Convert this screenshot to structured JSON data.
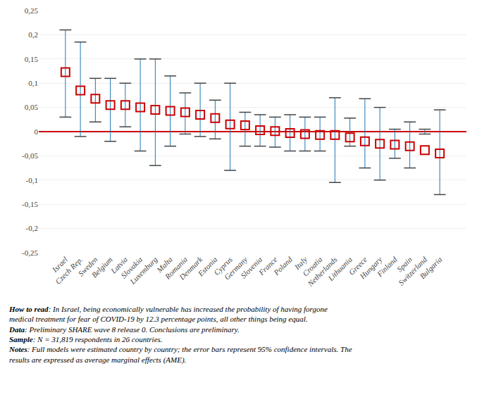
{
  "chart_data": {
    "type": "scatter",
    "categories": [
      "Israel",
      "Czech Rep.",
      "Sweden",
      "Belgium",
      "Latvia",
      "Slovakia",
      "Luxemburg",
      "Malta",
      "Romania",
      "Denmark",
      "Estonia",
      "Cyprus",
      "Germany",
      "Slovenia",
      "France",
      "Poland",
      "Italy",
      "Croatia",
      "Netherlands",
      "Lithuania",
      "Greece",
      "Hungary",
      "Finland",
      "Spain",
      "Switzerland",
      "Bulgaria"
    ],
    "values": [
      0.123,
      0.085,
      0.068,
      0.055,
      0.055,
      0.05,
      0.045,
      0.043,
      0.04,
      0.035,
      0.028,
      0.015,
      0.013,
      0.003,
      0.001,
      -0.003,
      -0.005,
      -0.007,
      -0.007,
      -0.012,
      -0.02,
      -0.025,
      -0.027,
      -0.03,
      -0.038,
      -0.045
    ],
    "ci_lower": [
      0.03,
      -0.01,
      0.02,
      -0.02,
      0.01,
      -0.04,
      -0.07,
      -0.03,
      -0.005,
      -0.01,
      -0.015,
      -0.08,
      -0.03,
      -0.03,
      -0.032,
      -0.04,
      -0.04,
      -0.04,
      -0.105,
      -0.03,
      -0.075,
      -0.1,
      -0.055,
      -0.075,
      -0.005,
      -0.13
    ],
    "ci_upper": [
      0.21,
      0.185,
      0.11,
      0.11,
      0.1,
      0.15,
      0.15,
      0.115,
      0.08,
      0.1,
      0.065,
      0.1,
      0.04,
      0.035,
      0.03,
      0.035,
      0.03,
      0.03,
      0.07,
      0.028,
      0.068,
      0.05,
      0.005,
      0.02,
      0.005,
      0.045
    ],
    "color": "#cc0000",
    "marker": "square-open",
    "ylim": [
      -0.25,
      0.25
    ],
    "yticks": [
      {
        "value": -0.25,
        "label": "-0,25"
      },
      {
        "value": -0.2,
        "label": "-0,2"
      },
      {
        "value": -0.15,
        "label": "-0,15"
      },
      {
        "value": -0.1,
        "label": "-0,1"
      },
      {
        "value": -0.05,
        "label": "-0,05"
      },
      0,
      {
        "value": 0.05,
        "label": "0,05"
      },
      {
        "value": 0.1,
        "label": "0,1"
      },
      {
        "value": 0.15,
        "label": "0,15"
      },
      {
        "value": 0.2,
        "label": "0,2"
      },
      {
        "value": 0.25,
        "label": "0,25"
      }
    ],
    "grid": true,
    "annotations": [
      "How to read: In Israel, being economically vulnerable has increased the probability of having forgone medical treatment for fear of COVID-19 by 12.3 percentage points, all other things being equal.",
      "Data: Preliminary SHARE wave 8 release 0. Conclusions are preliminary.",
      "Sample: N = 31,819 respondents in 26 countries.",
      "Notes: Full models were estimated country by country; the error bars represent 95% confidence intervals. The results are expressed as average marginal effects (AME)."
    ]
  }
}
